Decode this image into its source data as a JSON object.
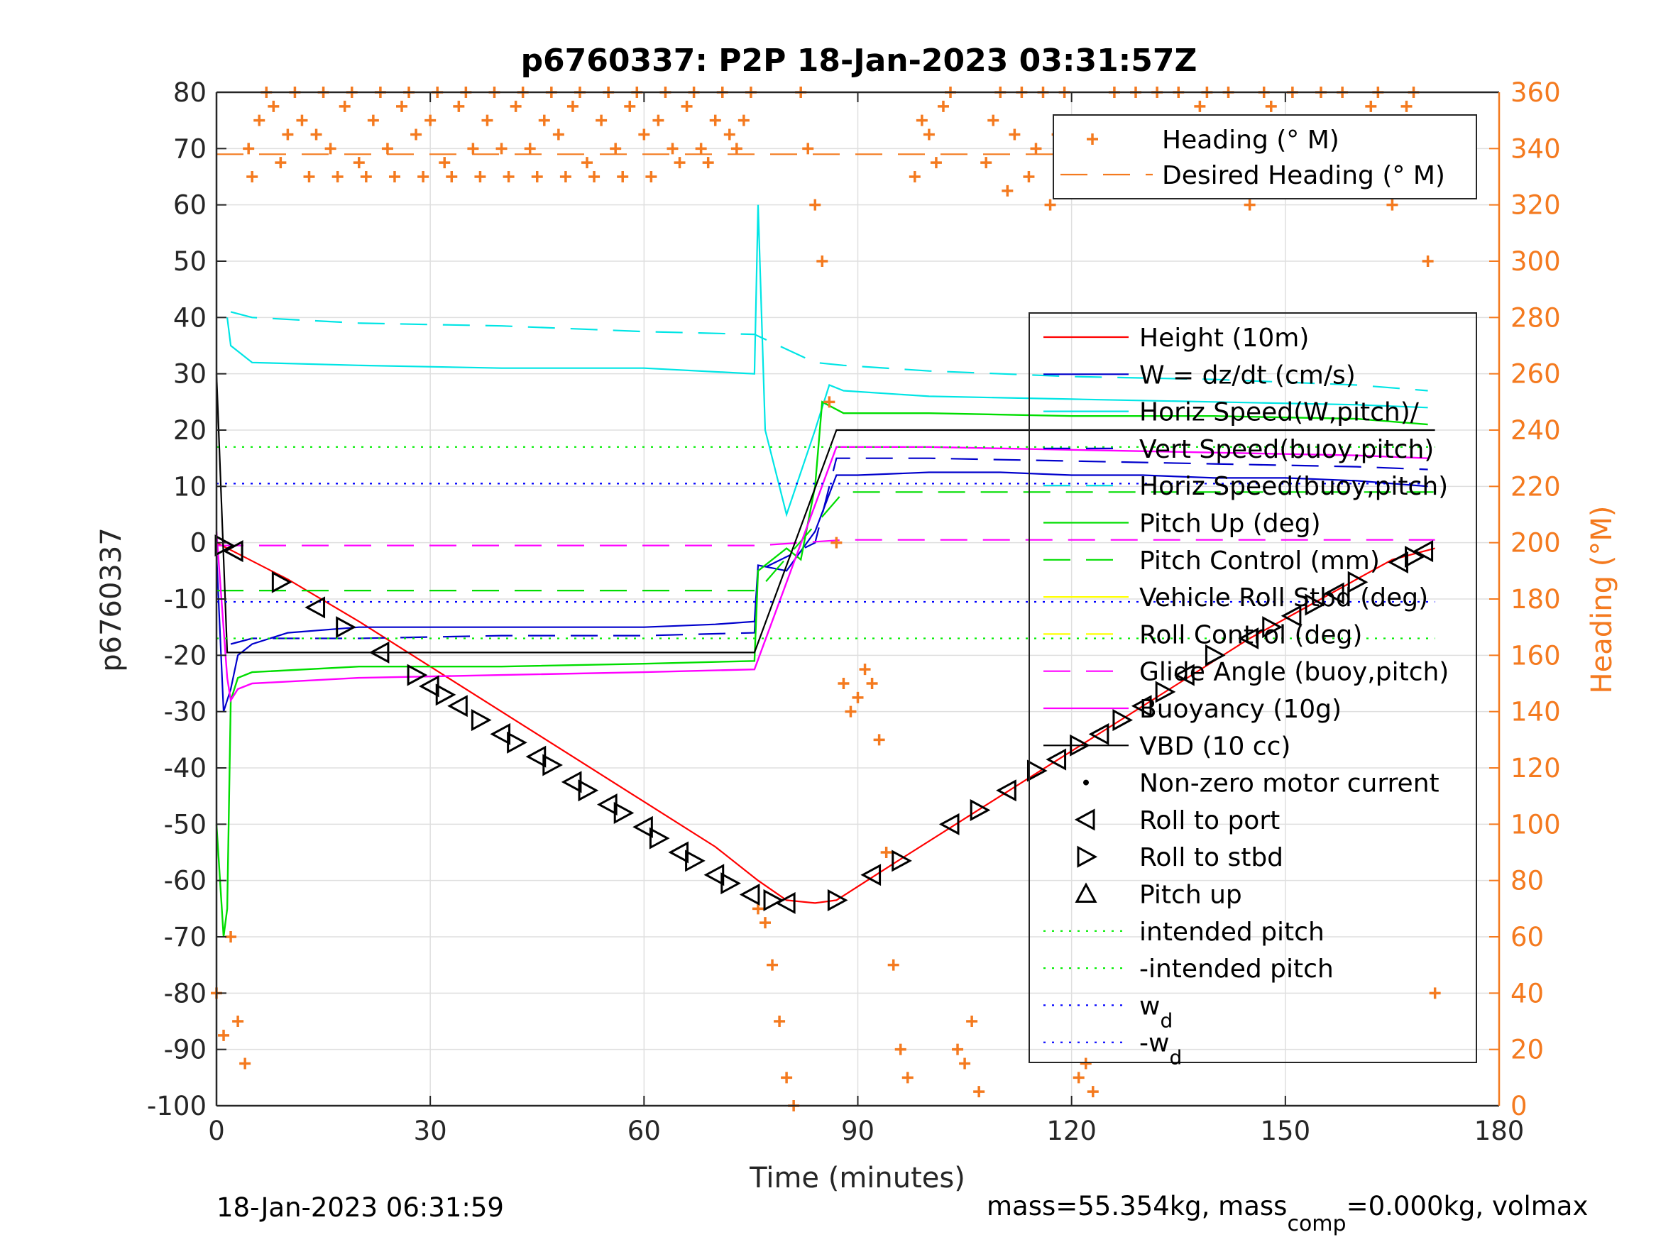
{
  "chart_data": {
    "type": "line",
    "title": "p6760337: P2P 18-Jan-2023 03:31:57Z",
    "xlabel": "Time (minutes)",
    "ylabel": "p6760337",
    "y2label": "Heading (°M)",
    "xlim": [
      0,
      180
    ],
    "ylim": [
      -100,
      80
    ],
    "y2lim": [
      0,
      360
    ],
    "xticks": [
      "0",
      "30",
      "60",
      "90",
      "120",
      "150",
      "180"
    ],
    "yticks": [
      "80",
      "70",
      "60",
      "50",
      "40",
      "30",
      "20",
      "10",
      "0",
      "-10",
      "-20",
      "-30",
      "-40",
      "-50",
      "-60",
      "-70",
      "-80",
      "-90",
      "-100"
    ],
    "y2ticks": [
      "360",
      "340",
      "320",
      "300",
      "280",
      "260",
      "240",
      "220",
      "200",
      "180",
      "160",
      "140",
      "120",
      "100",
      "80",
      "60",
      "40",
      "20",
      "0"
    ],
    "grid": true,
    "legend_main": {
      "placement": "right",
      "entries": [
        {
          "label": "Height (10m)",
          "color": "#ff0000",
          "style": "solid"
        },
        {
          "label": "W = dz/dt (cm/s)",
          "color": "#0000cc",
          "style": "solid"
        },
        {
          "label": "Horiz Speed(W,pitch)/",
          "color": "#00e5e5",
          "style": "solid"
        },
        {
          "label": "Vert Speed(buoy,pitch)",
          "color": "#0000cc",
          "style": "dashed"
        },
        {
          "label": "Horiz Speed(buoy,pitch)",
          "color": "#00e5e5",
          "style": "dashed"
        },
        {
          "label": "Pitch Up (deg)",
          "color": "#00dd00",
          "style": "solid"
        },
        {
          "label": "Pitch Control (mm)",
          "color": "#00dd00",
          "style": "dashed"
        },
        {
          "label": "Vehicle Roll Stbd (deg)",
          "color": "#ffff00",
          "style": "solid"
        },
        {
          "label": "Roll Control (deg)",
          "color": "#ffff00",
          "style": "dashed"
        },
        {
          "label": "Glide Angle (buoy,pitch)",
          "color": "#ff00ff",
          "style": "dashed"
        },
        {
          "label": "Buoyancy (10g)",
          "color": "#ff00ff",
          "style": "solid"
        },
        {
          "label": "VBD (10 cc)",
          "color": "#000000",
          "style": "solid"
        },
        {
          "label": "Non-zero motor current",
          "color": "#000000",
          "style": "dot"
        },
        {
          "label": "Roll to port",
          "color": "#000000",
          "style": "tri-left"
        },
        {
          "label": "Roll to stbd",
          "color": "#000000",
          "style": "tri-right"
        },
        {
          "label": "Pitch up",
          "color": "#000000",
          "style": "tri-up"
        },
        {
          "label": "intended pitch",
          "color": "#00ee00",
          "style": "dotted"
        },
        {
          "label": "-intended pitch",
          "color": "#00ee00",
          "style": "dotted"
        },
        {
          "label": "w",
          "sub": "d",
          "color": "#0000ff",
          "style": "dotted"
        },
        {
          "label": "-w",
          "sub": "d",
          "color": "#0000ff",
          "style": "dotted"
        }
      ]
    },
    "legend_heading": {
      "placement": "top-right",
      "entries": [
        {
          "label": "Heading (° M)",
          "color": "#f47a1f",
          "style": "plus"
        },
        {
          "label": "Desired Heading (° M)",
          "color": "#f47a1f",
          "style": "dashed"
        }
      ]
    },
    "series": [
      {
        "name": "Height (10m)",
        "color": "#ff0000",
        "x": [
          0,
          10,
          20,
          30,
          40,
          50,
          60,
          70,
          76,
          80,
          84,
          87,
          95,
          105,
          115,
          125,
          135,
          145,
          155,
          165,
          171
        ],
        "y": [
          0,
          -6.5,
          -14,
          -22,
          -30,
          -38,
          -46,
          -54,
          -60,
          -63.5,
          -64,
          -63.5,
          -57,
          -49,
          -41,
          -33,
          -25,
          -17,
          -10,
          -3,
          -1
        ]
      },
      {
        "name": "W = dz/dt (cm/s)",
        "color": "#0000cc",
        "x": [
          0,
          1,
          2,
          3,
          5,
          10,
          20,
          30,
          40,
          50,
          60,
          70,
          75.5,
          76,
          80,
          84,
          87,
          90,
          100,
          110,
          120,
          130,
          140,
          150,
          160,
          170
        ],
        "y": [
          -2,
          -30,
          -26,
          -20,
          -18,
          -16,
          -15,
          -15,
          -15,
          -15,
          -15,
          -14.5,
          -14,
          -4,
          -5,
          2,
          12,
          12,
          12.5,
          12.5,
          12,
          12,
          11.5,
          11.5,
          11,
          10
        ]
      },
      {
        "name": "Vert Speed(buoy,pitch)",
        "color": "#0000cc",
        "x": [
          2,
          5,
          20,
          40,
          60,
          75.5,
          76,
          84,
          87,
          100,
          120,
          140,
          160,
          170
        ],
        "y": [
          -18,
          -17,
          -17,
          -16.5,
          -16.5,
          -16,
          -5,
          0,
          15,
          15,
          14.5,
          14,
          13.5,
          13
        ]
      },
      {
        "name": "Horiz Speed(W,pitch)/",
        "color": "#00e5e5",
        "x": [
          1.5,
          2,
          5,
          20,
          40,
          60,
          75.5,
          76,
          77,
          80,
          84,
          86,
          88,
          100,
          120,
          140,
          160,
          170
        ],
        "y": [
          40,
          35,
          32,
          31.5,
          31,
          31,
          30,
          60,
          20,
          5,
          20,
          28,
          27,
          26,
          25.5,
          25,
          24.5,
          24
        ]
      },
      {
        "name": "Horiz Speed(buoy,pitch)",
        "color": "#00e5e5",
        "x": [
          2,
          5,
          20,
          40,
          60,
          75.5,
          84,
          88,
          100,
          120,
          140,
          160,
          170
        ],
        "y": [
          41,
          40,
          39,
          38.5,
          37.5,
          37,
          32,
          31.5,
          30.5,
          29.5,
          29,
          28,
          27
        ]
      },
      {
        "name": "Pitch Up (deg)",
        "color": "#00dd00",
        "x": [
          0,
          1,
          1.5,
          2,
          3,
          5,
          20,
          40,
          60,
          75.5,
          76,
          80,
          82,
          84,
          85,
          88,
          100,
          120,
          140,
          160,
          170
        ],
        "y": [
          -50,
          -70,
          -65,
          -28,
          -24,
          -23,
          -22,
          -22,
          -21.5,
          -21,
          -5,
          -1,
          -3,
          10,
          25,
          23,
          23,
          22.5,
          22.5,
          22,
          21
        ]
      },
      {
        "name": "Pitch Control (mm)",
        "color": "#00dd00",
        "x": [
          0,
          76,
          88,
          171
        ],
        "y": [
          -8.5,
          -8.5,
          9,
          9
        ]
      },
      {
        "name": "Buoyancy (10g)",
        "color": "#ff00ff",
        "x": [
          0,
          1.5,
          2,
          3,
          5,
          20,
          40,
          60,
          75.5,
          87,
          100,
          120,
          140,
          160,
          170
        ],
        "y": [
          2,
          -24,
          -28,
          -26,
          -25,
          -24,
          -23.5,
          -23,
          -22.5,
          17,
          17,
          16.5,
          16,
          15.5,
          15
        ]
      },
      {
        "name": "Glide Angle (buoy,pitch)",
        "color": "#ff00ff",
        "x": [
          0,
          76,
          88,
          171
        ],
        "y": [
          -0.5,
          -0.5,
          0.5,
          0.5
        ]
      },
      {
        "name": "VBD (10 cc)",
        "color": "#000000",
        "x": [
          0,
          1.5,
          2,
          75.5,
          87,
          171
        ],
        "y": [
          30,
          -19.5,
          -19.5,
          -19.5,
          20,
          20
        ]
      },
      {
        "name": "intended pitch",
        "color": "#00ee00",
        "x": [
          0,
          171
        ],
        "y": [
          17,
          17
        ]
      },
      {
        "name": "-intended pitch",
        "color": "#00ee00",
        "x": [
          0,
          171
        ],
        "y": [
          -17,
          -17
        ]
      },
      {
        "name": "w_d",
        "color": "#0000ff",
        "x": [
          0,
          171
        ],
        "y": [
          10.5,
          10.5
        ]
      },
      {
        "name": "-w_d",
        "color": "#0000ff",
        "x": [
          0,
          171
        ],
        "y": [
          -10.5,
          -10.5
        ]
      },
      {
        "name": "Desired Heading (° M)",
        "color": "#f47a1f",
        "axis": "right",
        "x": [
          0,
          171
        ],
        "y": [
          338,
          338
        ]
      }
    ],
    "roll_markers": {
      "x": [
        1,
        2.5,
        9,
        14,
        18,
        23,
        28,
        30,
        32,
        34,
        37,
        40,
        42,
        45,
        47,
        50,
        52,
        55,
        57,
        60,
        62,
        65,
        67,
        70,
        72,
        75,
        78,
        80,
        87,
        92,
        96,
        103,
        107,
        111,
        115,
        118,
        121,
        124,
        127,
        130,
        133,
        136,
        140,
        145,
        148,
        151,
        154,
        157,
        160,
        166,
        168,
        169.5
      ],
      "y": [
        -0.5,
        -1.5,
        -7,
        -11.5,
        -15,
        -19.5,
        -23.5,
        -25.5,
        -27,
        -29,
        -31.5,
        -34,
        -35.5,
        -38,
        -39.5,
        -42.5,
        -44,
        -46.5,
        -48,
        -50.5,
        -52.5,
        -55,
        -56.5,
        -59,
        -60.5,
        -62.5,
        -63.5,
        -64,
        -63.5,
        -59,
        -56.5,
        -50,
        -47.5,
        -44,
        -40.5,
        -38.5,
        -36,
        -34,
        -31.5,
        -29,
        -26.5,
        -23.5,
        -20,
        -17,
        -15,
        -13,
        -11,
        -9,
        -7,
        -3.5,
        -2.5,
        -1.5
      ]
    },
    "heading_points": {
      "note": "Heading (° M) samples on right axis (0-360)",
      "x": [
        0,
        1,
        2,
        3,
        4,
        4.5,
        5,
        6,
        7,
        8,
        9,
        10,
        11,
        12,
        13,
        14,
        15,
        16,
        17,
        18,
        19,
        20,
        21,
        22,
        23,
        24,
        25,
        26,
        27,
        28,
        29,
        30,
        31,
        32,
        33,
        34,
        35,
        36,
        37,
        38,
        39,
        40,
        41,
        42,
        43,
        44,
        45,
        46,
        47,
        48,
        49,
        50,
        51,
        52,
        53,
        54,
        55,
        56,
        57,
        58,
        59,
        60,
        61,
        62,
        63,
        64,
        65,
        66,
        67,
        68,
        69,
        70,
        71,
        72,
        73,
        74,
        75,
        76,
        77,
        78,
        79,
        80,
        81,
        82,
        83,
        84,
        85,
        86,
        87,
        88,
        89,
        90,
        91,
        92,
        93,
        94,
        95,
        96,
        97,
        98,
        99,
        100,
        101,
        102,
        103,
        104,
        105,
        106,
        107,
        108,
        109,
        110,
        111,
        112,
        113,
        114,
        115,
        116,
        117,
        118,
        119,
        120,
        121,
        122,
        123,
        124,
        125,
        126,
        127,
        128,
        129,
        130,
        131,
        132,
        133,
        134,
        135,
        136,
        137,
        138,
        139,
        140,
        141,
        142,
        143,
        144,
        145,
        146,
        147,
        148,
        149,
        150,
        151,
        152,
        153,
        154,
        155,
        156,
        157,
        158,
        159,
        160,
        161,
        162,
        163,
        164,
        165,
        166,
        167,
        168,
        169,
        170,
        171
      ],
      "y": [
        40,
        25,
        60,
        30,
        15,
        340,
        330,
        350,
        360,
        355,
        335,
        345,
        360,
        350,
        330,
        345,
        360,
        340,
        330,
        355,
        360,
        335,
        330,
        350,
        360,
        340,
        330,
        355,
        360,
        345,
        330,
        350,
        360,
        335,
        330,
        355,
        360,
        340,
        330,
        350,
        360,
        340,
        330,
        355,
        360,
        340,
        330,
        350,
        360,
        345,
        330,
        355,
        360,
        335,
        330,
        350,
        360,
        340,
        330,
        355,
        360,
        345,
        330,
        350,
        360,
        340,
        335,
        355,
        360,
        340,
        335,
        350,
        360,
        345,
        340,
        350,
        360,
        70,
        65,
        50,
        30,
        10,
        0,
        360,
        340,
        320,
        300,
        250,
        200,
        150,
        140,
        145,
        155,
        150,
        130,
        90,
        50,
        20,
        10,
        330,
        350,
        345,
        335,
        355,
        360,
        20,
        15,
        30,
        5,
        335,
        350,
        360,
        325,
        345,
        360,
        330,
        340,
        360,
        320,
        345,
        360,
        330,
        10,
        15,
        5,
        330,
        345,
        360,
        325,
        340,
        360,
        330,
        345,
        360,
        335,
        350,
        360,
        330,
        340,
        355,
        360,
        330,
        345,
        360,
        350,
        335,
        320,
        340,
        360,
        355,
        330,
        345,
        360,
        350,
        335,
        345,
        360,
        330,
        350,
        360,
        345,
        330,
        340,
        355,
        360,
        345,
        320,
        340,
        355,
        360,
        350,
        300,
        40
      ]
    }
  },
  "footer": {
    "date": "18-Jan-2023 06:31:59",
    "mass_pre": "mass=55.354kg, mass",
    "mass_sub": "comp",
    "mass_post": "=0.000kg, volmax"
  }
}
